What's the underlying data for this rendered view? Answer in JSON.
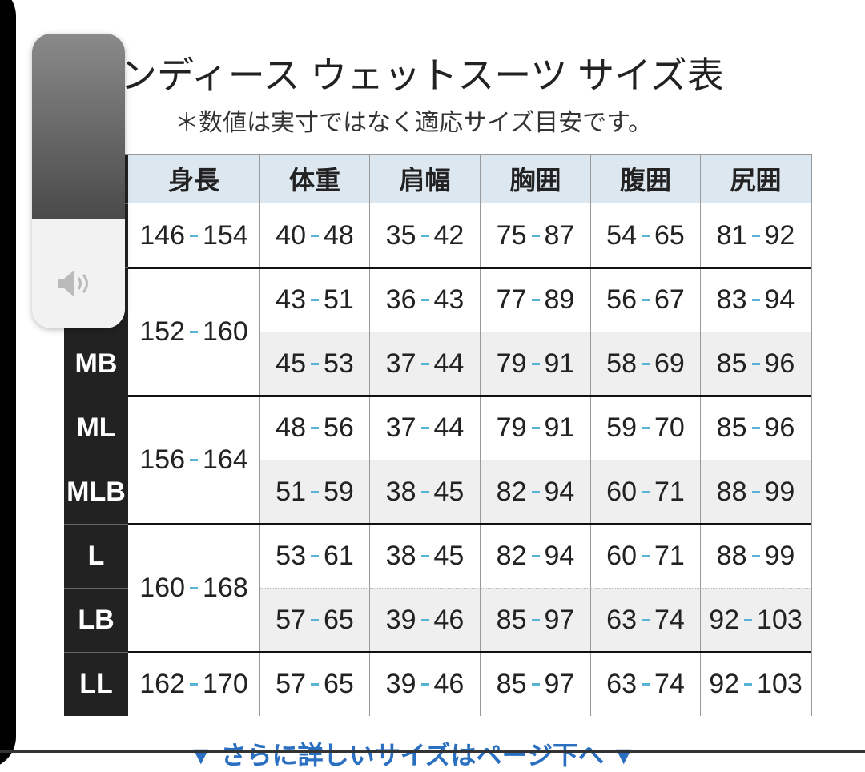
{
  "header": {
    "title": "ンディース ウェットスーツ サイズ表",
    "note": "＊数値は実寸ではなく適応サイズ目安です。"
  },
  "table": {
    "columns": [
      "身長",
      "体重",
      "肩幅",
      "胸囲",
      "腹囲",
      "尻囲"
    ],
    "groups": [
      {
        "height": [
          146,
          154
        ],
        "rows": [
          {
            "values": [
              [
                40,
                48
              ],
              [
                35,
                42
              ],
              [
                75,
                87
              ],
              [
                54,
                65
              ],
              [
                81,
                92
              ]
            ]
          }
        ]
      },
      {
        "height": [
          152,
          160
        ],
        "rows": [
          {
            "values": [
              [
                43,
                51
              ],
              [
                36,
                43
              ],
              [
                77,
                89
              ],
              [
                56,
                67
              ],
              [
                83,
                94
              ]
            ]
          },
          {
            "size": "MB",
            "values": [
              [
                45,
                53
              ],
              [
                37,
                44
              ],
              [
                79,
                91
              ],
              [
                58,
                69
              ],
              [
                85,
                96
              ]
            ]
          }
        ]
      },
      {
        "height": [
          156,
          164
        ],
        "rows": [
          {
            "size": "ML",
            "values": [
              [
                48,
                56
              ],
              [
                37,
                44
              ],
              [
                79,
                91
              ],
              [
                59,
                70
              ],
              [
                85,
                96
              ]
            ]
          },
          {
            "size": "MLB",
            "values": [
              [
                51,
                59
              ],
              [
                38,
                45
              ],
              [
                82,
                94
              ],
              [
                60,
                71
              ],
              [
                88,
                99
              ]
            ]
          }
        ]
      },
      {
        "height": [
          160,
          168
        ],
        "rows": [
          {
            "size": "L",
            "values": [
              [
                53,
                61
              ],
              [
                38,
                45
              ],
              [
                82,
                94
              ],
              [
                60,
                71
              ],
              [
                88,
                99
              ]
            ]
          },
          {
            "size": "LB",
            "values": [
              [
                57,
                65
              ],
              [
                39,
                46
              ],
              [
                85,
                97
              ],
              [
                63,
                74
              ],
              [
                92,
                103
              ]
            ]
          }
        ]
      },
      {
        "height": [
          162,
          170
        ],
        "rows": [
          {
            "size": "LL",
            "values": [
              [
                57,
                65
              ],
              [
                39,
                46
              ],
              [
                85,
                97
              ],
              [
                63,
                74
              ],
              [
                92,
                103
              ]
            ]
          }
        ]
      }
    ]
  },
  "footer": {
    "link": "▼ さらに詳しいサイズはページ下へ ▼"
  }
}
